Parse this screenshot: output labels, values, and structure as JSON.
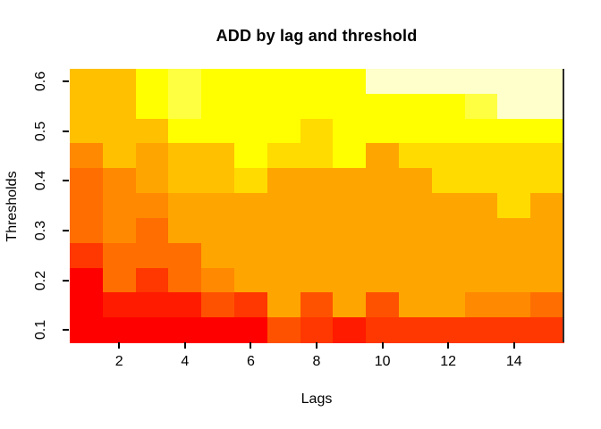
{
  "chart": {
    "title": "ADD by lag and threshold",
    "xlabel": "Lags",
    "ylabel": "Thresholds"
  },
  "chart_data": {
    "type": "heatmap",
    "title": "ADD by lag and threshold",
    "xlabel": "Lags",
    "ylabel": "Thresholds",
    "x_values_lags": [
      1,
      2,
      3,
      4,
      5,
      6,
      7,
      8,
      9,
      10,
      11,
      12,
      13,
      14,
      15
    ],
    "y_values_thresholds": [
      0.1,
      0.15,
      0.2,
      0.25,
      0.3,
      0.35,
      0.4,
      0.45,
      0.5,
      0.55,
      0.6
    ],
    "x_axis_ticks": [
      2,
      4,
      6,
      8,
      10,
      12,
      14
    ],
    "y_axis_ticks": [
      "0.1",
      "0.2",
      "0.3",
      "0.4",
      "0.5",
      "0.6"
    ],
    "x_range": [
      0.5,
      15.5
    ],
    "y_range": [
      0.075,
      0.625
    ],
    "grid": false,
    "legend": "none",
    "palette_low_to_high_value": {
      "L1": "#FF0000",
      "L2": "#FF1B00",
      "L3": "#FF3700",
      "L4": "#FF5200",
      "L5": "#FF6E00",
      "L6": "#FF8900",
      "L7": "#FFA500",
      "L8": "#FFC000",
      "L9": "#FFDB00",
      "L10": "#FFFF00",
      "L11": "#FFFF42",
      "L12": "#FFFFCC"
    },
    "row_thresholds_top_to_bottom": [
      0.6,
      0.55,
      0.5,
      0.45,
      0.4,
      0.35,
      0.3,
      0.25,
      0.2,
      0.15,
      0.1
    ],
    "cells_rows_top_to_bottom_cols_lag1_to_15": [
      [
        "L8",
        "L8",
        "L10",
        "L11",
        "L10",
        "L10",
        "L10",
        "L10",
        "L10",
        "L12",
        "L12",
        "L12",
        "L12",
        "L12",
        "L12"
      ],
      [
        "L8",
        "L8",
        "L10",
        "L11",
        "L10",
        "L10",
        "L10",
        "L10",
        "L10",
        "L10",
        "L10",
        "L10",
        "L11",
        "L12",
        "L12"
      ],
      [
        "L8",
        "L8",
        "L8",
        "L10",
        "L10",
        "L10",
        "L10",
        "L9",
        "L10",
        "L10",
        "L10",
        "L10",
        "L10",
        "L10",
        "L10"
      ],
      [
        "L6",
        "L8",
        "L7",
        "L8",
        "L8",
        "L10",
        "L9",
        "L9",
        "L10",
        "L7",
        "L9",
        "L9",
        "L9",
        "L9",
        "L9"
      ],
      [
        "L5",
        "L6",
        "L7",
        "L8",
        "L8",
        "L9",
        "L7",
        "L7",
        "L7",
        "L7",
        "L7",
        "L9",
        "L9",
        "L9",
        "L9"
      ],
      [
        "L5",
        "L6",
        "L6",
        "L7",
        "L7",
        "L7",
        "L7",
        "L7",
        "L7",
        "L7",
        "L7",
        "L7",
        "L7",
        "L9",
        "L7"
      ],
      [
        "L5",
        "L6",
        "L5",
        "L7",
        "L7",
        "L7",
        "L7",
        "L7",
        "L7",
        "L7",
        "L7",
        "L7",
        "L7",
        "L7",
        "L7"
      ],
      [
        "L3",
        "L5",
        "L5",
        "L5",
        "L7",
        "L7",
        "L7",
        "L7",
        "L7",
        "L7",
        "L7",
        "L7",
        "L7",
        "L7",
        "L7"
      ],
      [
        "L1",
        "L5",
        "L3",
        "L5",
        "L6",
        "L7",
        "L7",
        "L7",
        "L7",
        "L7",
        "L7",
        "L7",
        "L7",
        "L7",
        "L7"
      ],
      [
        "L1",
        "L2",
        "L2",
        "L2",
        "L4",
        "L3",
        "L7",
        "L4",
        "L7",
        "L4",
        "L7",
        "L7",
        "L6",
        "L6",
        "L5"
      ],
      [
        "L1",
        "L1",
        "L1",
        "L1",
        "L1",
        "L1",
        "L4",
        "L3",
        "L2",
        "L3",
        "L3",
        "L3",
        "L3",
        "L3",
        "L3"
      ]
    ]
  }
}
